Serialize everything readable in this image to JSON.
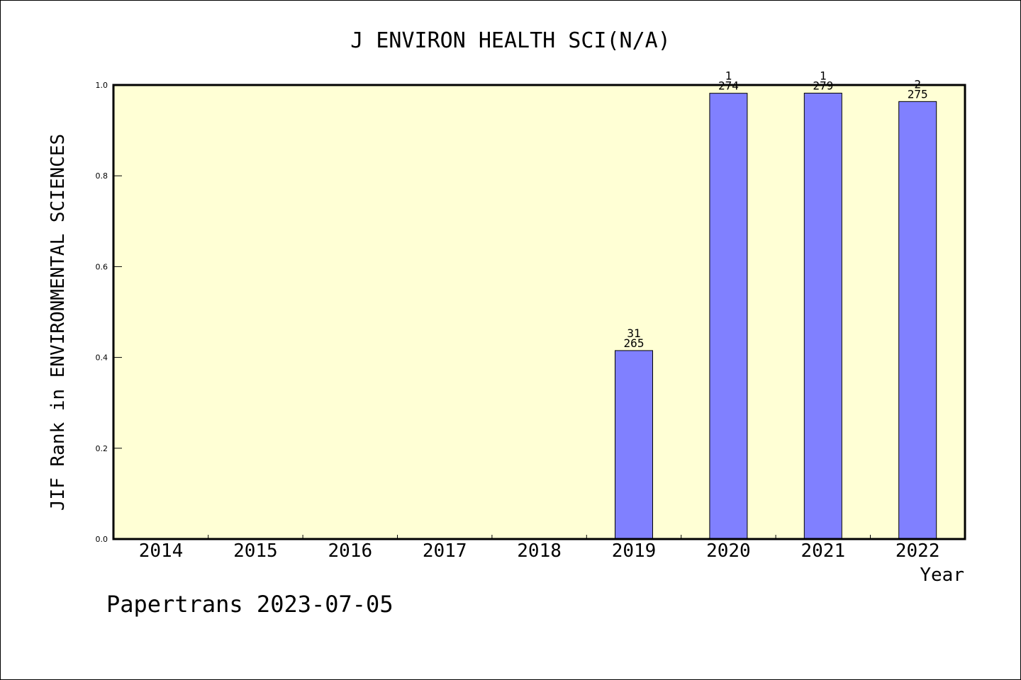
{
  "chart_data": {
    "type": "bar",
    "title": "J ENVIRON HEALTH SCI(N/A)",
    "xlabel": "Year",
    "ylabel": "JIF Rank in ENVIRONMENTAL SCIENCES",
    "categories": [
      "2014",
      "2015",
      "2016",
      "2017",
      "2018",
      "2019",
      "2020",
      "2021",
      "2022"
    ],
    "values": [
      null,
      null,
      null,
      null,
      null,
      0.4151,
      0.9818,
      0.9821,
      0.9636
    ],
    "bar_labels": [
      null,
      null,
      null,
      null,
      null,
      {
        "rank": "31",
        "total": "265"
      },
      {
        "rank": "1",
        "total": "274"
      },
      {
        "rank": "1",
        "total": "279"
      },
      {
        "rank": "2",
        "total": "275"
      }
    ],
    "ylim": [
      0,
      1.0
    ],
    "yticks": [
      "0.0",
      "0.2",
      "0.4",
      "0.6",
      "0.8",
      "1.0"
    ],
    "grid": false,
    "colors": {
      "plot_background": "#ffffd5",
      "bar_fill": "#8080ff",
      "bar_stroke": "#000000"
    }
  },
  "footer": {
    "caption": "Papertrans 2023-07-05"
  }
}
